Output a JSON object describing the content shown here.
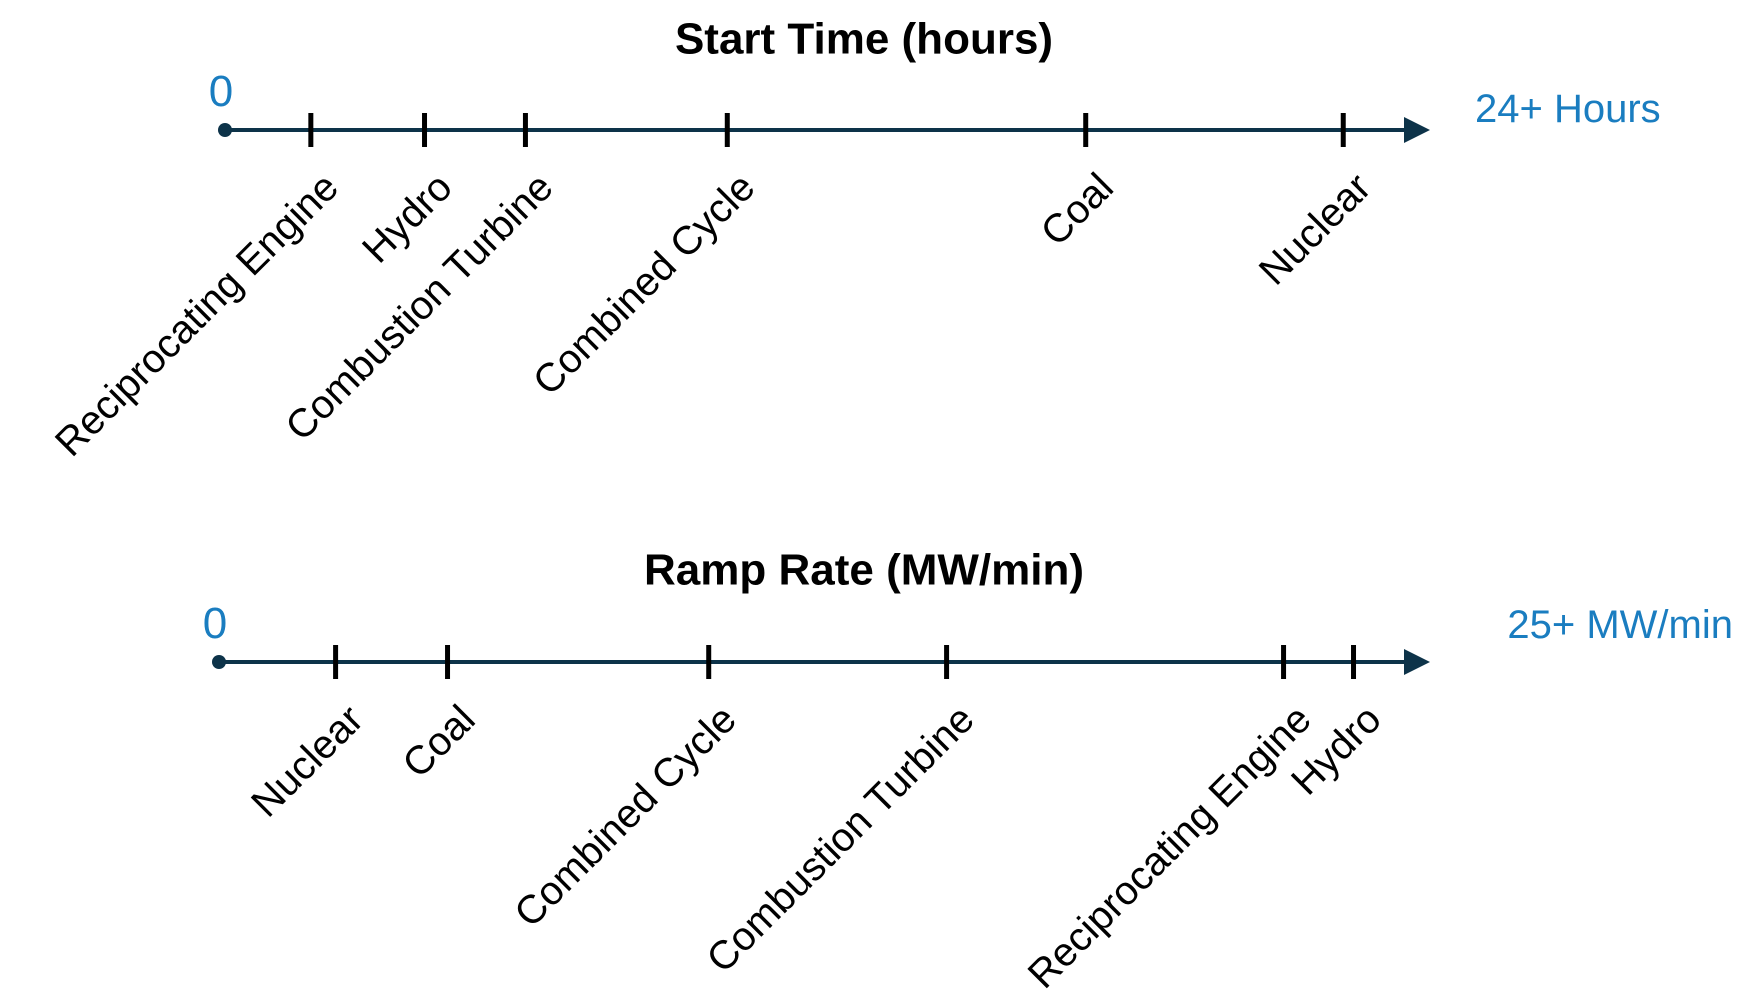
{
  "colors": {
    "axis": "#0d3349",
    "accent": "#1a7dc0",
    "text": "#000000"
  },
  "timelines": [
    {
      "title": "Start Time (hours)",
      "start_label": "0",
      "end_label": "24+ Hours",
      "items": [
        {
          "label": "Reciprocating Engine",
          "value": 0.074
        },
        {
          "label": "Hydro",
          "value": 0.172
        },
        {
          "label": "Combustion Turbine",
          "value": 0.259
        },
        {
          "label": "Combined Cycle",
          "value": 0.433
        },
        {
          "label": "Coal",
          "value": 0.742
        },
        {
          "label": "Nuclear",
          "value": 0.964
        }
      ]
    },
    {
      "title": "Ramp Rate (MW/min)",
      "start_label": "0",
      "end_label": "25+ MW/min",
      "items": [
        {
          "label": "Nuclear",
          "value": 0.1
        },
        {
          "label": "Coal",
          "value": 0.196
        },
        {
          "label": "Combined Cycle",
          "value": 0.42
        },
        {
          "label": "Combustion Turbine",
          "value": 0.624
        },
        {
          "label": "Reciprocating Engine",
          "value": 0.913
        },
        {
          "label": "Hydro",
          "value": 0.973
        }
      ]
    }
  ]
}
